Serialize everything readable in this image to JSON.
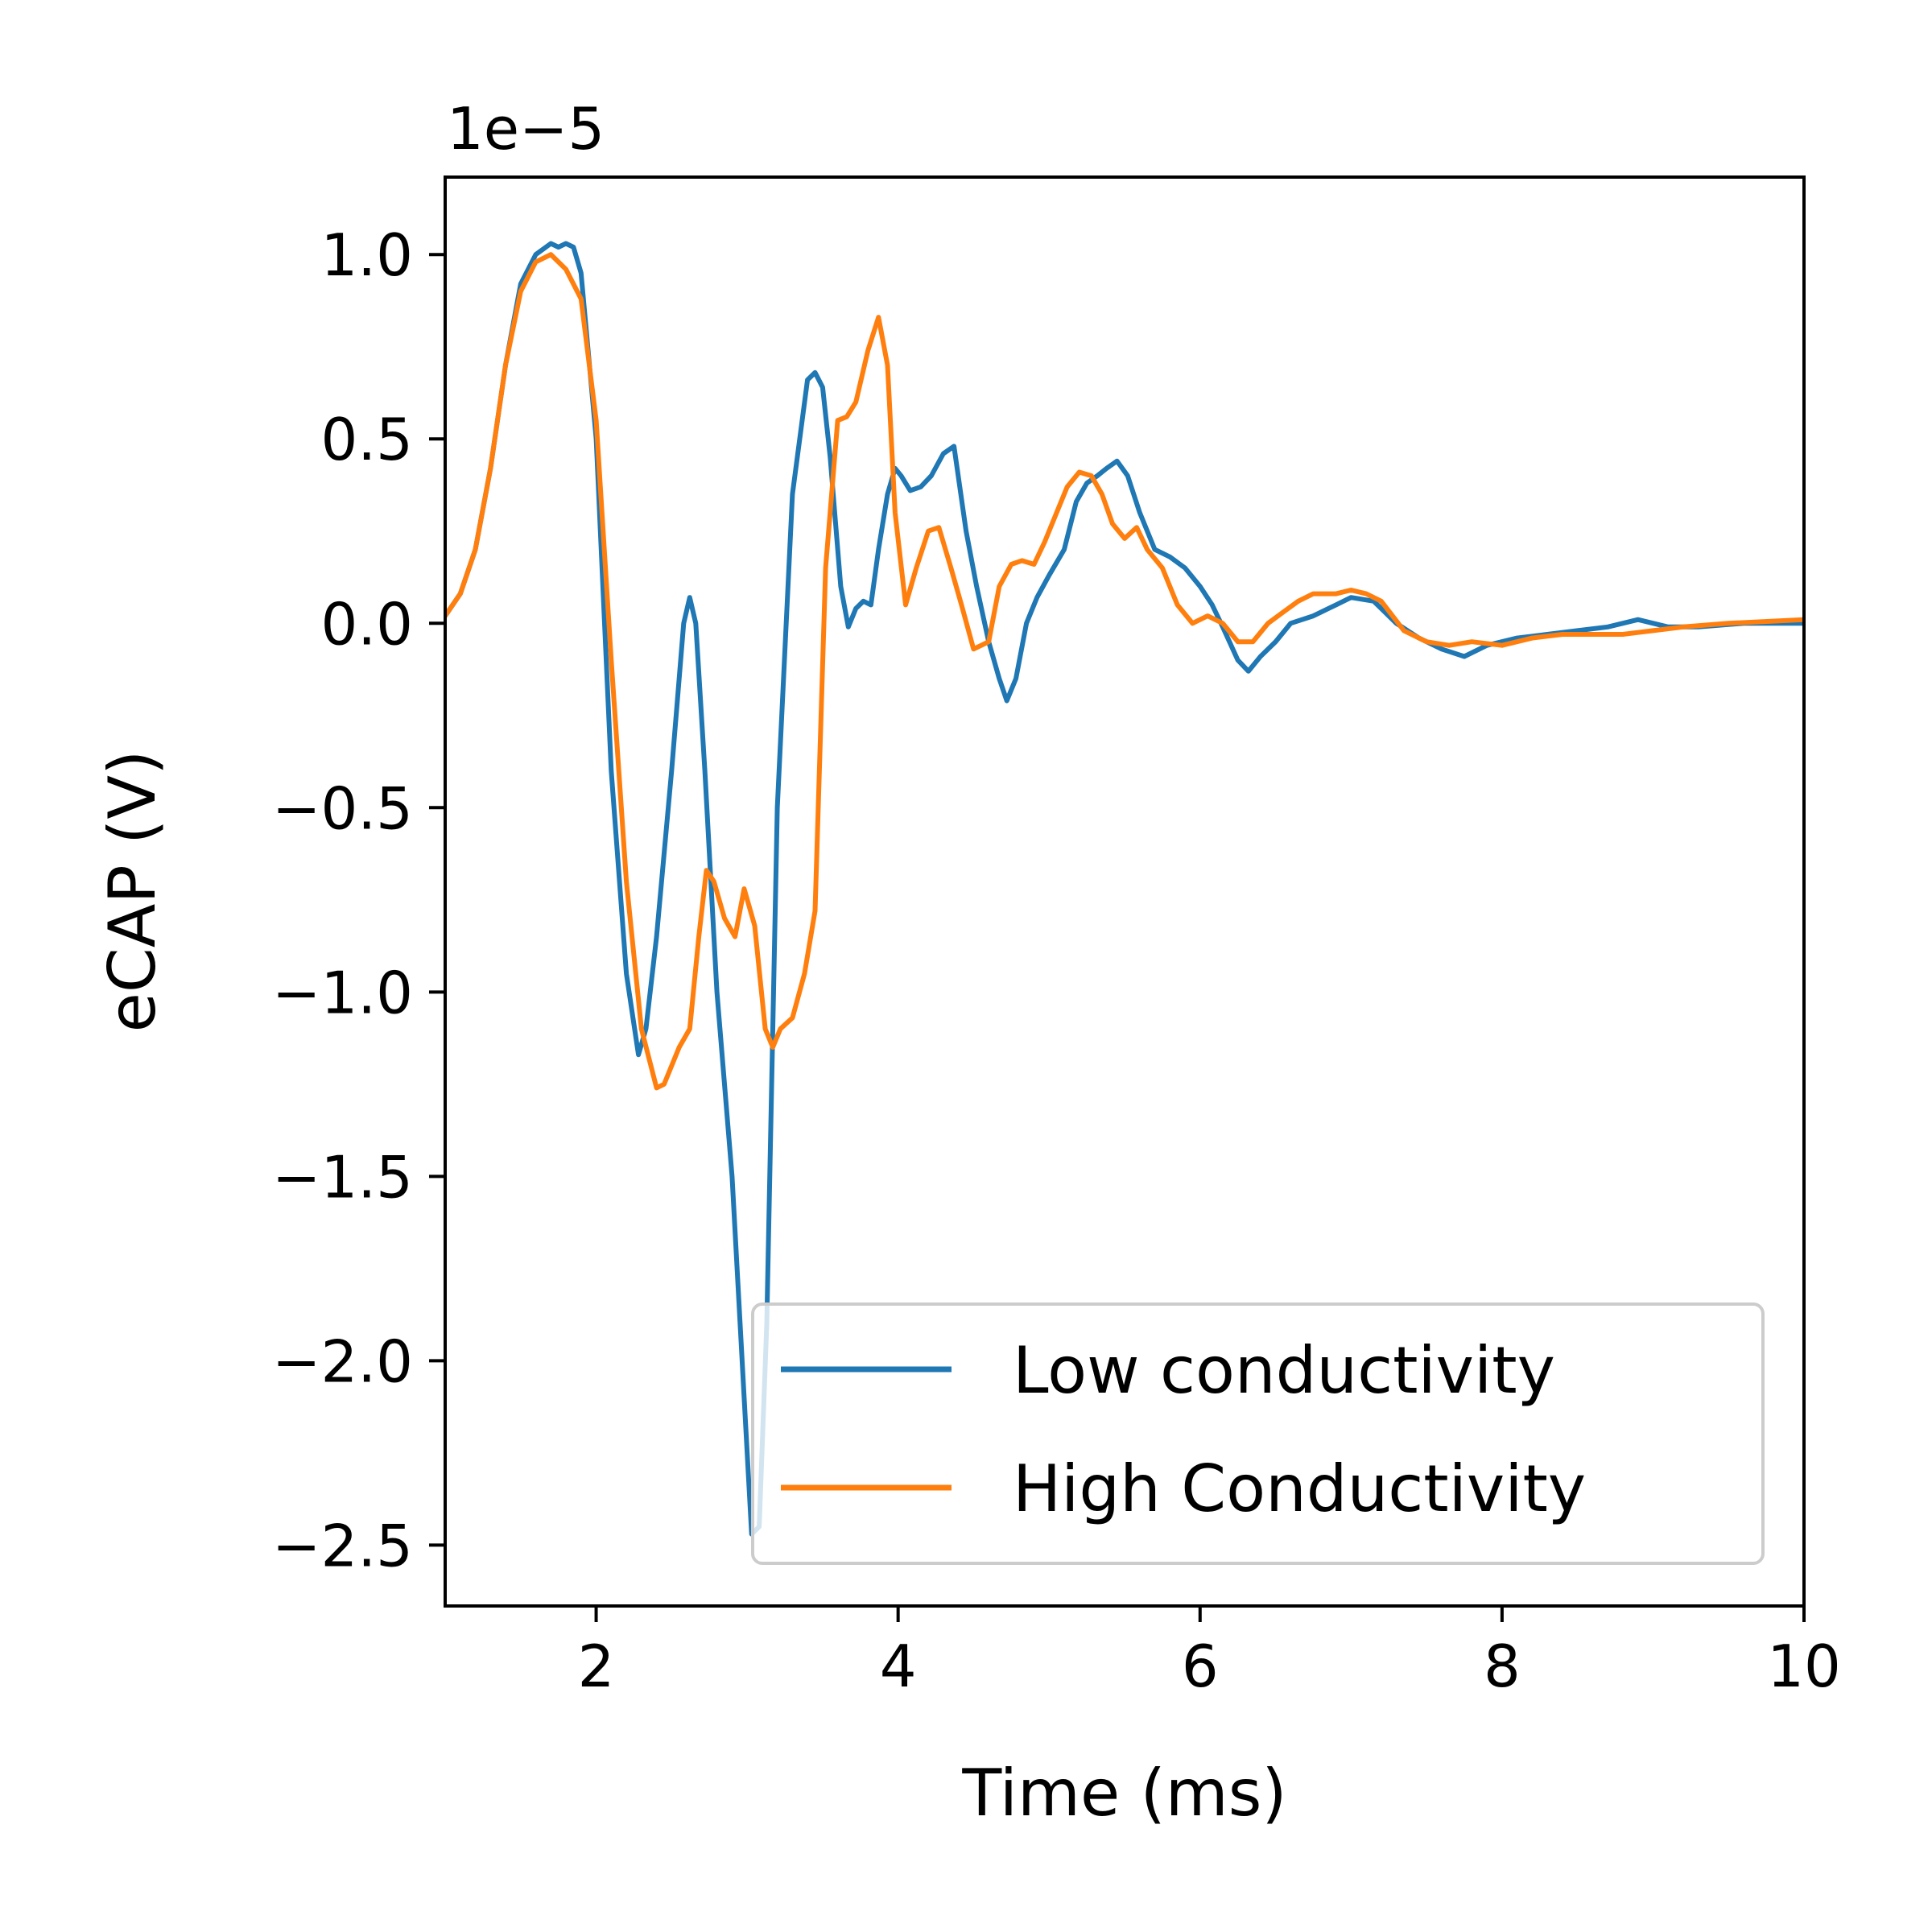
{
  "chart_data": {
    "type": "line",
    "offset_text": "1e−5",
    "xlabel": "Time (ms)",
    "ylabel": "eCAP (V)",
    "xlim": [
      1.0,
      10.0
    ],
    "ylim": [
      -2.665,
      1.21
    ],
    "x_ticks": [
      2,
      4,
      6,
      8,
      10
    ],
    "x_tick_labels": [
      "2",
      "4",
      "6",
      "8",
      "10"
    ],
    "y_ticks": [
      1.0,
      0.5,
      0.0,
      -0.5,
      -1.0,
      -1.5,
      -2.0,
      -2.5
    ],
    "y_tick_labels": [
      "1.0",
      "0.5",
      "0.0",
      "−0.5",
      "−1.0",
      "−1.5",
      "−2.0",
      "−2.5"
    ],
    "grid": false,
    "legend_position": "lower-right",
    "series": [
      {
        "name": "Low conductivity",
        "color": "#1f77b4",
        "points": [
          [
            1.0,
            0.02
          ],
          [
            1.1,
            0.08
          ],
          [
            1.2,
            0.2
          ],
          [
            1.3,
            0.42
          ],
          [
            1.4,
            0.7
          ],
          [
            1.5,
            0.92
          ],
          [
            1.6,
            1.0
          ],
          [
            1.7,
            1.03
          ],
          [
            1.75,
            1.02
          ],
          [
            1.8,
            1.03
          ],
          [
            1.85,
            1.02
          ],
          [
            1.9,
            0.95
          ],
          [
            2.0,
            0.5
          ],
          [
            2.1,
            -0.4
          ],
          [
            2.2,
            -0.95
          ],
          [
            2.28,
            -1.17
          ],
          [
            2.33,
            -1.1
          ],
          [
            2.4,
            -0.85
          ],
          [
            2.5,
            -0.4
          ],
          [
            2.58,
            0.0
          ],
          [
            2.62,
            0.07
          ],
          [
            2.66,
            0.0
          ],
          [
            2.72,
            -0.4
          ],
          [
            2.8,
            -1.0
          ],
          [
            2.9,
            -1.5
          ],
          [
            2.98,
            -2.1
          ],
          [
            3.03,
            -2.47
          ],
          [
            3.08,
            -2.45
          ],
          [
            3.13,
            -1.9
          ],
          [
            3.2,
            -0.5
          ],
          [
            3.3,
            0.35
          ],
          [
            3.4,
            0.66
          ],
          [
            3.45,
            0.68
          ],
          [
            3.5,
            0.64
          ],
          [
            3.55,
            0.45
          ],
          [
            3.62,
            0.1
          ],
          [
            3.67,
            -0.01
          ],
          [
            3.72,
            0.04
          ],
          [
            3.77,
            0.06
          ],
          [
            3.82,
            0.05
          ],
          [
            3.87,
            0.2
          ],
          [
            3.93,
            0.35
          ],
          [
            3.98,
            0.42
          ],
          [
            4.02,
            0.4
          ],
          [
            4.08,
            0.36
          ],
          [
            4.15,
            0.37
          ],
          [
            4.22,
            0.4
          ],
          [
            4.3,
            0.46
          ],
          [
            4.37,
            0.48
          ],
          [
            4.45,
            0.25
          ],
          [
            4.52,
            0.1
          ],
          [
            4.6,
            -0.05
          ],
          [
            4.67,
            -0.15
          ],
          [
            4.72,
            -0.21
          ],
          [
            4.78,
            -0.15
          ],
          [
            4.85,
            0.0
          ],
          [
            4.92,
            0.07
          ],
          [
            5.0,
            0.13
          ],
          [
            5.1,
            0.2
          ],
          [
            5.18,
            0.33
          ],
          [
            5.25,
            0.38
          ],
          [
            5.32,
            0.4
          ],
          [
            5.38,
            0.42
          ],
          [
            5.45,
            0.44
          ],
          [
            5.52,
            0.4
          ],
          [
            5.6,
            0.3
          ],
          [
            5.7,
            0.2
          ],
          [
            5.8,
            0.18
          ],
          [
            5.9,
            0.15
          ],
          [
            6.0,
            0.1
          ],
          [
            6.08,
            0.05
          ],
          [
            6.15,
            -0.01
          ],
          [
            6.25,
            -0.1
          ],
          [
            6.32,
            -0.13
          ],
          [
            6.4,
            -0.09
          ],
          [
            6.5,
            -0.05
          ],
          [
            6.6,
            0.0
          ],
          [
            6.75,
            0.02
          ],
          [
            6.9,
            0.05
          ],
          [
            7.0,
            0.07
          ],
          [
            7.15,
            0.06
          ],
          [
            7.3,
            0.0
          ],
          [
            7.45,
            -0.04
          ],
          [
            7.6,
            -0.07
          ],
          [
            7.75,
            -0.09
          ],
          [
            7.9,
            -0.06
          ],
          [
            8.1,
            -0.04
          ],
          [
            8.3,
            -0.03
          ],
          [
            8.5,
            -0.02
          ],
          [
            8.7,
            -0.01
          ],
          [
            8.9,
            0.01
          ],
          [
            9.1,
            -0.01
          ],
          [
            9.3,
            -0.01
          ],
          [
            9.6,
            0.0
          ],
          [
            10.0,
            0.0
          ]
        ]
      },
      {
        "name": "High Conductivity",
        "color": "#ff7f0e",
        "points": [
          [
            1.0,
            0.02
          ],
          [
            1.1,
            0.08
          ],
          [
            1.2,
            0.2
          ],
          [
            1.3,
            0.42
          ],
          [
            1.4,
            0.7
          ],
          [
            1.5,
            0.9
          ],
          [
            1.6,
            0.98
          ],
          [
            1.7,
            1.0
          ],
          [
            1.8,
            0.96
          ],
          [
            1.9,
            0.88
          ],
          [
            2.0,
            0.55
          ],
          [
            2.1,
            -0.1
          ],
          [
            2.2,
            -0.7
          ],
          [
            2.3,
            -1.1
          ],
          [
            2.4,
            -1.26
          ],
          [
            2.45,
            -1.25
          ],
          [
            2.55,
            -1.15
          ],
          [
            2.62,
            -1.1
          ],
          [
            2.68,
            -0.85
          ],
          [
            2.73,
            -0.67
          ],
          [
            2.78,
            -0.7
          ],
          [
            2.85,
            -0.8
          ],
          [
            2.92,
            -0.85
          ],
          [
            2.98,
            -0.72
          ],
          [
            3.05,
            -0.82
          ],
          [
            3.12,
            -1.1
          ],
          [
            3.17,
            -1.15
          ],
          [
            3.22,
            -1.1
          ],
          [
            3.3,
            -1.07
          ],
          [
            3.38,
            -0.95
          ],
          [
            3.45,
            -0.78
          ],
          [
            3.52,
            0.15
          ],
          [
            3.6,
            0.55
          ],
          [
            3.66,
            0.56
          ],
          [
            3.72,
            0.6
          ],
          [
            3.8,
            0.74
          ],
          [
            3.87,
            0.83
          ],
          [
            3.93,
            0.7
          ],
          [
            3.98,
            0.3
          ],
          [
            4.05,
            0.05
          ],
          [
            4.12,
            0.15
          ],
          [
            4.2,
            0.25
          ],
          [
            4.27,
            0.26
          ],
          [
            4.35,
            0.15
          ],
          [
            4.42,
            0.05
          ],
          [
            4.5,
            -0.07
          ],
          [
            4.6,
            -0.05
          ],
          [
            4.67,
            0.1
          ],
          [
            4.75,
            0.16
          ],
          [
            4.82,
            0.17
          ],
          [
            4.9,
            0.16
          ],
          [
            4.97,
            0.22
          ],
          [
            5.05,
            0.3
          ],
          [
            5.12,
            0.37
          ],
          [
            5.2,
            0.41
          ],
          [
            5.28,
            0.4
          ],
          [
            5.35,
            0.35
          ],
          [
            5.42,
            0.27
          ],
          [
            5.5,
            0.23
          ],
          [
            5.58,
            0.26
          ],
          [
            5.65,
            0.2
          ],
          [
            5.75,
            0.15
          ],
          [
            5.85,
            0.05
          ],
          [
            5.95,
            0.0
          ],
          [
            6.05,
            0.02
          ],
          [
            6.15,
            0.0
          ],
          [
            6.25,
            -0.05
          ],
          [
            6.35,
            -0.05
          ],
          [
            6.45,
            0.0
          ],
          [
            6.55,
            0.03
          ],
          [
            6.65,
            0.06
          ],
          [
            6.75,
            0.08
          ],
          [
            6.9,
            0.08
          ],
          [
            7.0,
            0.09
          ],
          [
            7.1,
            0.08
          ],
          [
            7.2,
            0.06
          ],
          [
            7.35,
            -0.02
          ],
          [
            7.5,
            -0.05
          ],
          [
            7.65,
            -0.06
          ],
          [
            7.8,
            -0.05
          ],
          [
            8.0,
            -0.06
          ],
          [
            8.2,
            -0.04
          ],
          [
            8.4,
            -0.03
          ],
          [
            8.6,
            -0.03
          ],
          [
            8.8,
            -0.03
          ],
          [
            9.0,
            -0.02
          ],
          [
            9.2,
            -0.01
          ],
          [
            9.5,
            0.0
          ],
          [
            10.0,
            0.01
          ]
        ]
      }
    ]
  }
}
